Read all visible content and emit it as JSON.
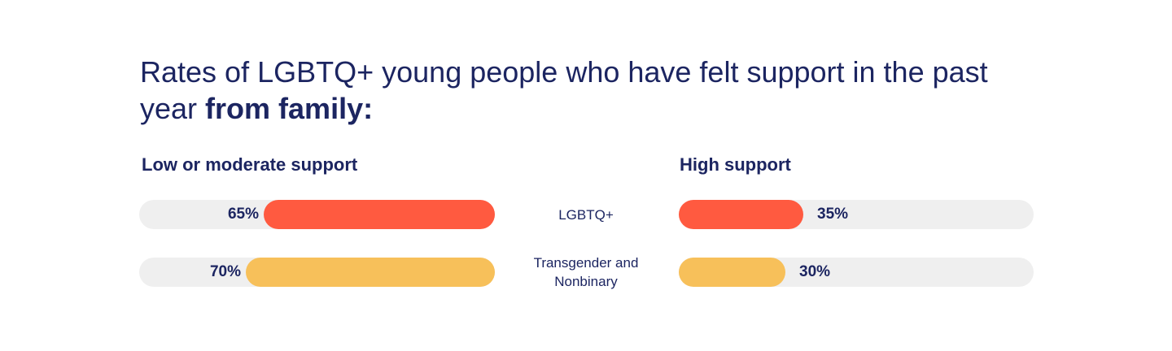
{
  "title": {
    "prefix": "Rates of LGBTQ+ young people who have felt support in the past year ",
    "emphasis": "from family:"
  },
  "colors": {
    "track": "#efefef",
    "lgbtq": "#ff5a40",
    "trans_nonbinary": "#f7c05a",
    "text": "#1c2561"
  },
  "chart_data": {
    "type": "bar",
    "orientation": "horizontal-diverging",
    "title": "Rates of LGBTQ+ young people who have felt support in the past year from family:",
    "categories": [
      "LGBTQ+",
      "Transgender and Nonbinary"
    ],
    "category_lines": [
      [
        "LGBTQ+"
      ],
      [
        "Transgender and",
        "Nonbinary"
      ]
    ],
    "series": [
      {
        "name": "Low or moderate support",
        "values": [
          65,
          70
        ],
        "labels": [
          "65%",
          "70%"
        ]
      },
      {
        "name": "High support",
        "values": [
          35,
          30
        ],
        "labels": [
          "35%",
          "30%"
        ]
      }
    ],
    "xlim": [
      0,
      100
    ],
    "unit": "%",
    "grid": false
  }
}
